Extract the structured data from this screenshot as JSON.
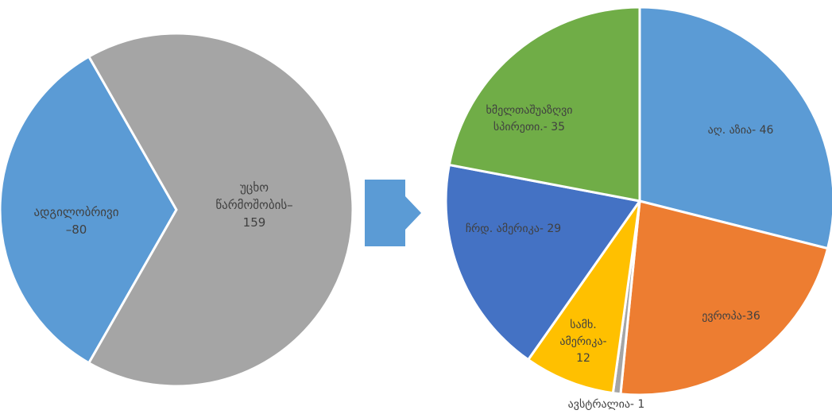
{
  "colors": {
    "blue": "#5B9BD5",
    "gray": "#A5A5A5",
    "orange": "#ED7D31",
    "yellow": "#FFC000",
    "dark_blue": "#4472C4",
    "green": "#70AD47",
    "arrow": "#5B9BD5"
  },
  "chart_data": [
    {
      "type": "pie",
      "slices": [
        {
          "label": [
            "ადგილობრივი",
            "–80"
          ],
          "value": 80,
          "color": "#5B9BD5"
        },
        {
          "label": [
            "უცხო",
            "წარმოშობის–",
            "159"
          ],
          "value": 159,
          "color": "#A5A5A5"
        }
      ]
    },
    {
      "type": "pie",
      "slices": [
        {
          "label": [
            "აღ. აზია- 46"
          ],
          "value": 46,
          "color": "#5B9BD5"
        },
        {
          "label": [
            "ევროპა-36"
          ],
          "value": 36,
          "color": "#ED7D31"
        },
        {
          "label": [
            "ავსტრალია- 1"
          ],
          "value": 1,
          "color": "#A5A5A5"
        },
        {
          "label": [
            "სამხ.",
            "ამერიკა-",
            "12"
          ],
          "value": 12,
          "color": "#FFC000"
        },
        {
          "label": [
            "ჩრდ. ამერიკა- 29"
          ],
          "value": 29,
          "color": "#4472C4"
        },
        {
          "label": [
            "ხმელთაშუაზღვი",
            "სპირეთი.- 35"
          ],
          "value": 35,
          "color": "#70AD47"
        }
      ]
    }
  ]
}
